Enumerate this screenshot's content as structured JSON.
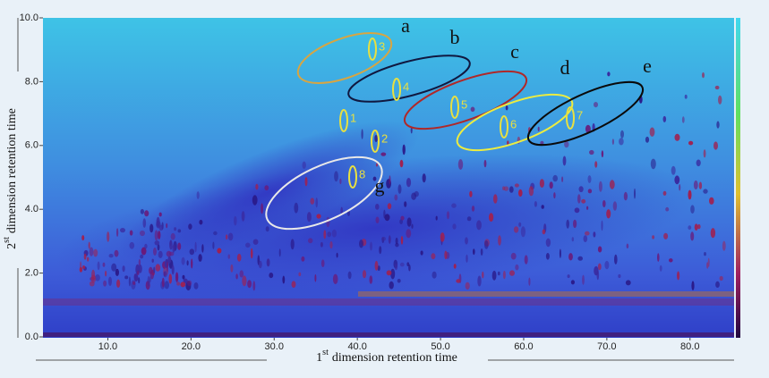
{
  "chart_data": {
    "type": "contour",
    "x_label": [
      "1",
      "st",
      "dimension retention time"
    ],
    "y_label": [
      "2",
      "st",
      "dimension retention time"
    ],
    "xlim": [
      2.2,
      85.3
    ],
    "ylim": [
      0,
      10
    ],
    "xticks": [
      {
        "value": 10,
        "label": "10.0"
      },
      {
        "value": 20,
        "label": "20.0"
      },
      {
        "value": 30,
        "label": "30.0"
      },
      {
        "value": 40,
        "label": "40.0"
      },
      {
        "value": 50,
        "label": "50.0"
      },
      {
        "value": 60,
        "label": "60.0"
      },
      {
        "value": 70,
        "label": "70.0"
      },
      {
        "value": 80,
        "label": "80.0"
      }
    ],
    "yticks": [
      {
        "value": 0,
        "label": "0.0"
      },
      {
        "value": 2,
        "label": "2.0"
      },
      {
        "value": 4,
        "label": "4.0"
      },
      {
        "value": 6,
        "label": "6.0"
      },
      {
        "value": 8,
        "label": "8.0"
      },
      {
        "value": 10,
        "label": "10.0"
      }
    ],
    "regions": [
      "a",
      "b",
      "c",
      "d",
      "e",
      "g"
    ],
    "peaks": [
      "1",
      "2",
      "3",
      "4",
      "5",
      "6",
      "7",
      "8"
    ]
  }
}
